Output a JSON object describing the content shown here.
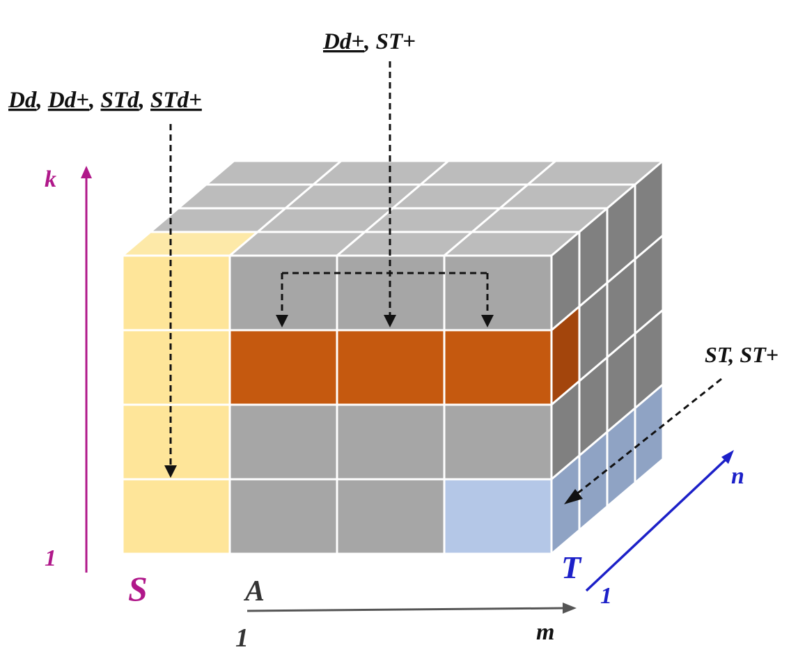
{
  "labels": {
    "top_left_annotation": [
      "Dd",
      ", ",
      "Dd+",
      ", ",
      "STd",
      ", ",
      "STd+"
    ],
    "top_center_annotation": [
      "Dd+",
      ", ST+"
    ],
    "right_annotation": "ST, ST+",
    "k_axis_top": "k",
    "k_axis_bottom": "1",
    "s_label": "S",
    "a_label": "A",
    "m_axis_start": "1",
    "m_axis_end": "m",
    "t_label": "T",
    "n_axis_start": "1",
    "n_axis_end": "n"
  },
  "colors": {
    "gray_front": "#a6a6a6",
    "gray_top": "#bcbcbc",
    "gray_side": "#808080",
    "yellow": "#fee599",
    "yellow_top": "#fde9a8",
    "orange": "#c5590f",
    "orange_side": "#a3450c",
    "light_blue": "#b4c7e7",
    "blue_side": "#8fa3c4",
    "magenta": "#b0188a",
    "blue": "#1c20c8",
    "dark_gray": "#555555"
  }
}
